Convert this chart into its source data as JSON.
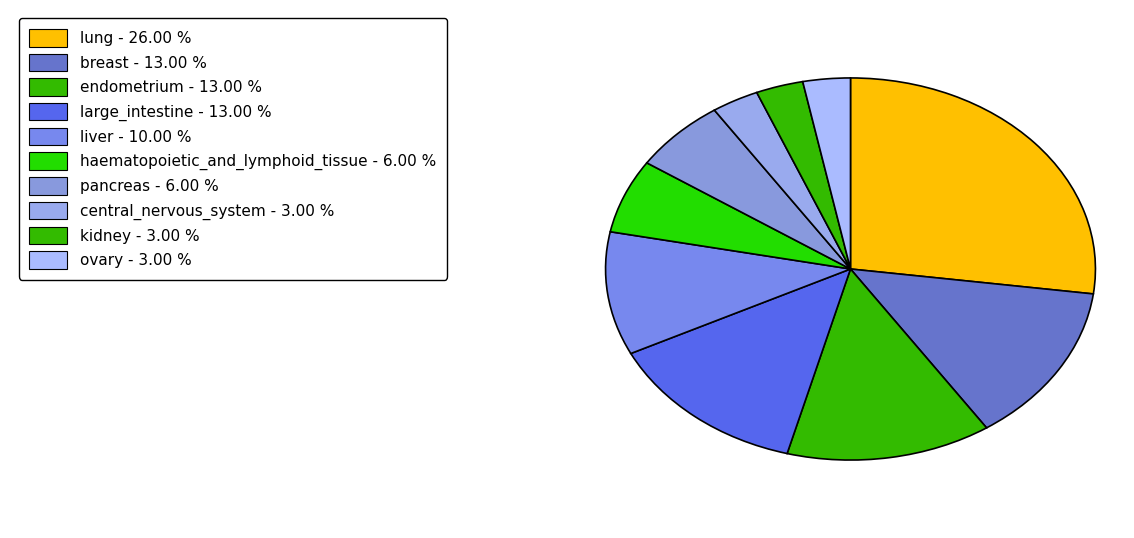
{
  "labels": [
    "lung",
    "breast",
    "endometrium",
    "large_intestine",
    "liver",
    "haematopoietic_and_lymphoid_tissue",
    "pancreas",
    "central_nervous_system",
    "kidney",
    "ovary"
  ],
  "values": [
    26,
    13,
    13,
    13,
    10,
    6,
    6,
    3,
    3,
    3
  ],
  "colors": [
    "#FFC000",
    "#6674CC",
    "#33BB00",
    "#5566EE",
    "#7788EE",
    "#22DD00",
    "#8899DD",
    "#99AAEE",
    "#33BB00",
    "#AABBFF"
  ],
  "legend_labels": [
    "lung - 26.00 %",
    "breast - 13.00 %",
    "endometrium - 13.00 %",
    "large_intestine - 13.00 %",
    "liver - 10.00 %",
    "haematopoietic_and_lymphoid_tissue - 6.00 %",
    "pancreas - 6.00 %",
    "central_nervous_system - 3.00 %",
    "kidney - 3.00 %",
    "ovary - 3.00 %"
  ],
  "startangle": 90,
  "figsize": [
    11.34,
    5.38
  ],
  "dpi": 100
}
